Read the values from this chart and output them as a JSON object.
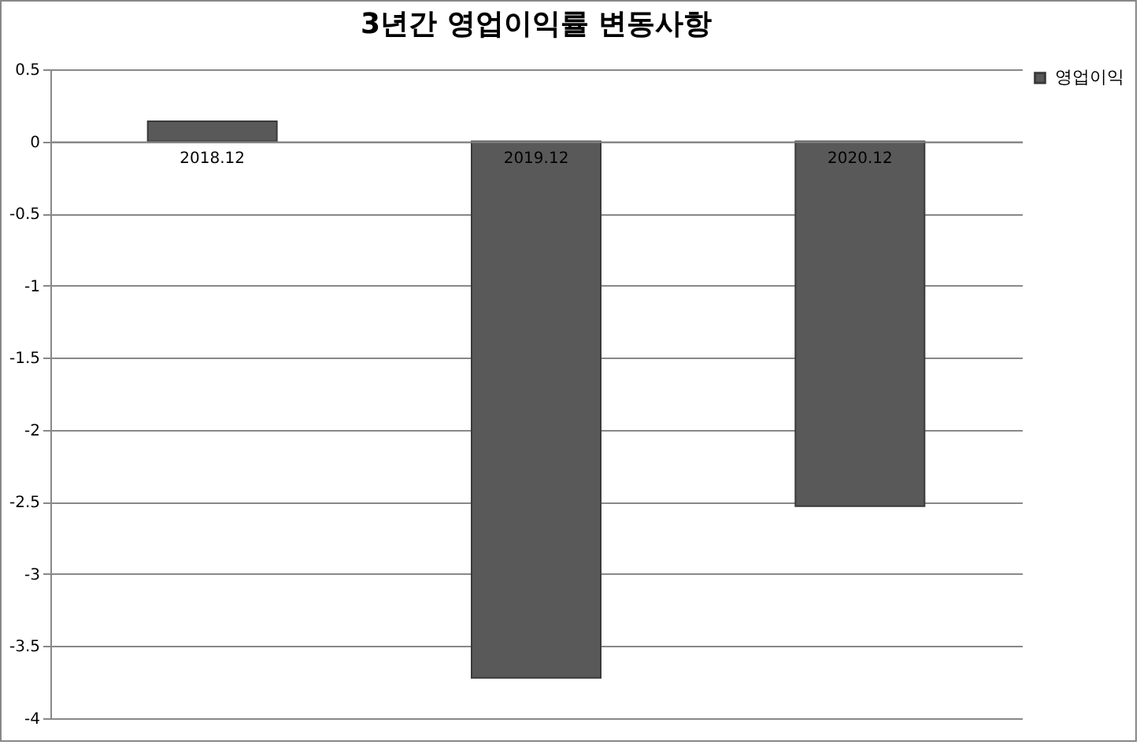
{
  "chart_data": {
    "type": "bar",
    "title": "3년간 영업이익률 변동사항",
    "categories": [
      "2018.12",
      "2019.12",
      "2020.12"
    ],
    "series": [
      {
        "name": "영업이익",
        "color": "#595959",
        "values": [
          0.14,
          -3.72,
          -2.53
        ]
      }
    ],
    "ylim": [
      -4,
      0.5
    ],
    "yticks": [
      -4,
      -3.5,
      -3,
      -2.5,
      -2,
      -1.5,
      -1,
      -0.5,
      0,
      0.5
    ],
    "grid": "y",
    "legend": "right"
  }
}
